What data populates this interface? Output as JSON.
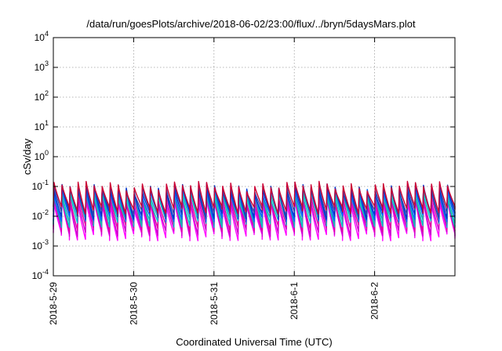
{
  "chart_data": {
    "type": "line",
    "title": "/data/run/goesPlots/archive/2018-06-02/23:00/flux/../bryn/5daysMars.plot",
    "xlabel": "Coordinated Universal Time (UTC)",
    "ylabel": "cSv/day",
    "yscale": "log",
    "ylim": [
      0.0001,
      10000
    ],
    "xlim": [
      "2018-05-29 00:00",
      "2018-06-03 00:00"
    ],
    "grid": true,
    "legend": "none",
    "x_ticks": [
      "2018-5-29",
      "2018-5-30",
      "2018-5-31",
      "2018-6-1",
      "2018-6-2"
    ],
    "y_ticks": [
      {
        "base": "10",
        "exp": "-4"
      },
      {
        "base": "10",
        "exp": "-3"
      },
      {
        "base": "10",
        "exp": "-2"
      },
      {
        "base": "10",
        "exp": "-1"
      },
      {
        "base": "10",
        "exp": "0"
      },
      {
        "base": "10",
        "exp": "1"
      },
      {
        "base": "10",
        "exp": "2"
      },
      {
        "base": "10",
        "exp": "3"
      },
      {
        "base": "10",
        "exp": "4"
      }
    ],
    "pattern": {
      "description_values": "sawtooth pulses repeating roughly every 2.4 hours",
      "period_hours": 2.4,
      "series": [
        {
          "color": "#ff00ff",
          "peak": 0.028,
          "trough": 0.0025
        },
        {
          "color": "#cc00cc",
          "peak": 0.035,
          "trough": 0.0035
        },
        {
          "color": "#e000a0",
          "peak": 0.045,
          "trough": 0.005
        },
        {
          "color": "#00c8c8",
          "peak": 0.055,
          "trough": 0.007
        },
        {
          "color": "#20b0b0",
          "peak": 0.065,
          "trough": 0.009
        },
        {
          "color": "#0066ff",
          "peak": 0.075,
          "trough": 0.011
        },
        {
          "color": "#0033cc",
          "peak": 0.085,
          "trough": 0.013
        },
        {
          "color": "#3344aa",
          "peak": 0.095,
          "trough": 0.016
        },
        {
          "color": "#cc0033",
          "peak": 0.11,
          "trough": 0.02
        }
      ]
    }
  }
}
